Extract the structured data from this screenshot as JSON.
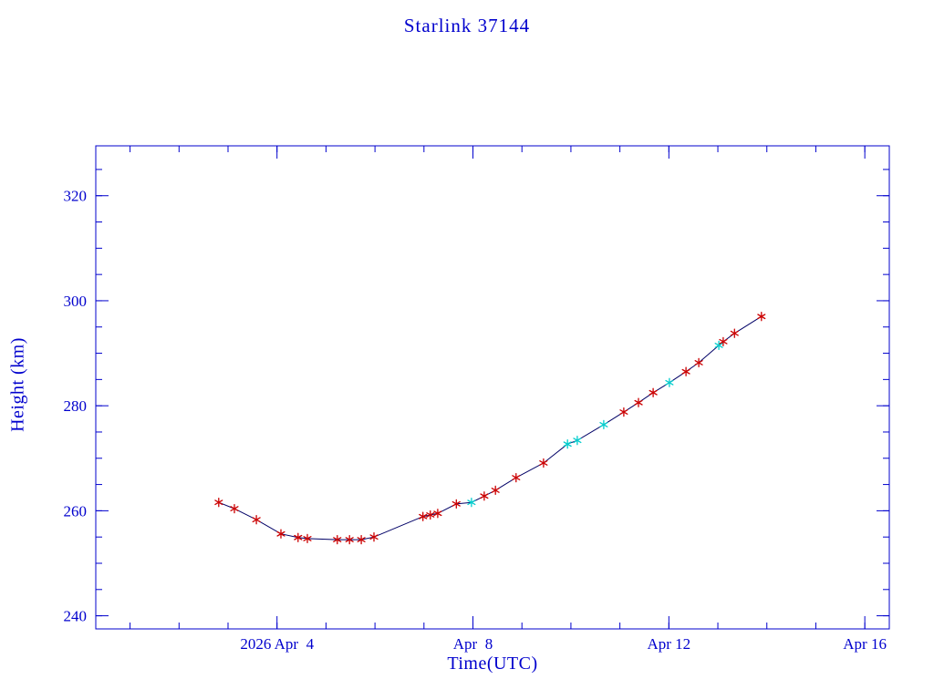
{
  "chart_data": {
    "type": "line",
    "title": "Starlink 37144",
    "xlabel": "Time(UTC)",
    "ylabel": "Height (km)",
    "x_unit": "day of April 2026",
    "xlim": [
      0.3,
      16.5
    ],
    "ylim": [
      237.5,
      329.5
    ],
    "x_major_ticks": [
      {
        "value": 4,
        "label": "2026 Apr  4"
      },
      {
        "value": 8,
        "label": "Apr  8"
      },
      {
        "value": 12,
        "label": "Apr 12"
      },
      {
        "value": 16,
        "label": "Apr 16"
      }
    ],
    "x_minor_tick_interval": 1,
    "y_major_ticks": [
      240,
      260,
      280,
      300,
      320
    ],
    "y_minor_tick_interval": 5,
    "grid": "off",
    "legend": "none",
    "colors": {
      "axis": "#0000cd",
      "line": "#000066",
      "marker_red": "#cc0000",
      "marker_cyan": "#00cdcd"
    },
    "series": [
      {
        "name": "orbital-height",
        "marker": "asterisk",
        "points": [
          {
            "t": 2.81,
            "h": 261.6,
            "c": "red"
          },
          {
            "t": 3.13,
            "h": 260.4,
            "c": "red"
          },
          {
            "t": 3.58,
            "h": 258.3,
            "c": "red"
          },
          {
            "t": 4.08,
            "h": 255.6,
            "c": "red"
          },
          {
            "t": 4.43,
            "h": 254.9,
            "c": "red"
          },
          {
            "t": 4.62,
            "h": 254.7,
            "c": "red"
          },
          {
            "t": 5.23,
            "h": 254.5,
            "c": "red"
          },
          {
            "t": 5.48,
            "h": 254.5,
            "c": "red"
          },
          {
            "t": 5.72,
            "h": 254.5,
            "c": "red"
          },
          {
            "t": 5.98,
            "h": 255.0,
            "c": "red"
          },
          {
            "t": 6.98,
            "h": 258.9,
            "c": "red"
          },
          {
            "t": 7.13,
            "h": 259.2,
            "c": "red"
          },
          {
            "t": 7.28,
            "h": 259.5,
            "c": "red"
          },
          {
            "t": 7.66,
            "h": 261.3,
            "c": "red"
          },
          {
            "t": 7.97,
            "h": 261.6,
            "c": "cyan"
          },
          {
            "t": 8.23,
            "h": 262.8,
            "c": "red"
          },
          {
            "t": 8.46,
            "h": 263.9,
            "c": "red"
          },
          {
            "t": 8.88,
            "h": 266.3,
            "c": "red"
          },
          {
            "t": 9.44,
            "h": 269.1,
            "c": "red"
          },
          {
            "t": 9.93,
            "h": 272.7,
            "c": "cyan"
          },
          {
            "t": 10.13,
            "h": 273.4,
            "c": "cyan"
          },
          {
            "t": 10.67,
            "h": 276.4,
            "c": "cyan"
          },
          {
            "t": 11.08,
            "h": 278.8,
            "c": "red"
          },
          {
            "t": 11.38,
            "h": 280.6,
            "c": "red"
          },
          {
            "t": 11.68,
            "h": 282.5,
            "c": "red"
          },
          {
            "t": 12.01,
            "h": 284.4,
            "c": "cyan"
          },
          {
            "t": 12.35,
            "h": 286.5,
            "c": "red"
          },
          {
            "t": 12.61,
            "h": 288.2,
            "c": "red"
          },
          {
            "t": 13.02,
            "h": 291.5,
            "c": "cyan"
          },
          {
            "t": 13.11,
            "h": 292.2,
            "c": "red"
          },
          {
            "t": 13.34,
            "h": 293.8,
            "c": "red"
          },
          {
            "t": 13.89,
            "h": 297.0,
            "c": "red"
          }
        ]
      }
    ]
  }
}
